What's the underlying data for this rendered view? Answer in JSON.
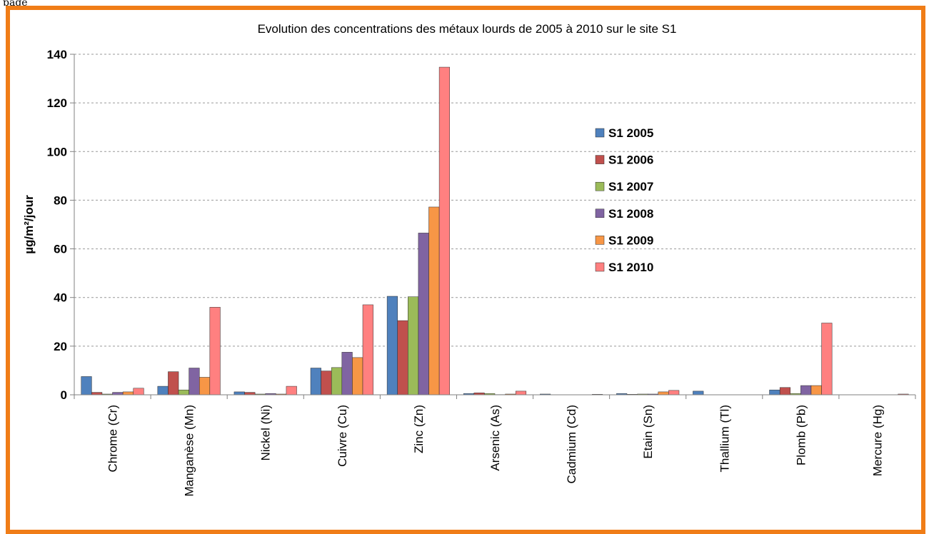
{
  "page_fragment": "page",
  "chart_data": {
    "type": "bar",
    "title": "Evolution des concentrations des métaux lourds de 2005 à 2010 sur le site S1",
    "xlabel": "",
    "ylabel": "µg/m²/jour",
    "ylim": [
      0,
      140
    ],
    "yticks": [
      0,
      20,
      40,
      60,
      80,
      100,
      120,
      140
    ],
    "grid": true,
    "legend_position": "upper-center-right",
    "categories": [
      "Chrome (Cr)",
      "Manganèse (Mn)",
      "Nickel (Ni)",
      "Cuivre (Cu)",
      "Zinc (Zn)",
      "Arsenic (As)",
      "Cadmium (Cd)",
      "Etain (Sn)",
      "Thallium (Tl)",
      "Plomb (Pb)",
      "Mercure (Hg)"
    ],
    "series": [
      {
        "name": "S1 2005",
        "color": "#4f81bd",
        "values": [
          7.5,
          3.5,
          1.2,
          11,
          40.5,
          0.5,
          0.3,
          0.5,
          1.5,
          2,
          0
        ]
      },
      {
        "name": "S1 2006",
        "color": "#c0504d",
        "values": [
          1,
          9.5,
          1,
          9.8,
          30.5,
          0.8,
          0,
          0.2,
          0,
          3,
          0
        ]
      },
      {
        "name": "S1 2007",
        "color": "#9bbb59",
        "values": [
          0.3,
          2,
          0.3,
          11.2,
          40.3,
          0.5,
          0,
          0.3,
          0,
          0.5,
          0
        ]
      },
      {
        "name": "S1 2008",
        "color": "#8064a2",
        "values": [
          1,
          11,
          0.5,
          17.5,
          66.5,
          0.1,
          0,
          0.3,
          0,
          3.8,
          0
        ]
      },
      {
        "name": "S1 2009",
        "color": "#f79646",
        "values": [
          1.2,
          7.2,
          0.3,
          15.3,
          77.2,
          0.3,
          0,
          1.2,
          0,
          3.8,
          0
        ]
      },
      {
        "name": "S1 2010",
        "color": "#ff8080",
        "values": [
          2.7,
          36,
          3.5,
          37,
          134.7,
          1.5,
          0.2,
          1.8,
          0,
          29.5,
          0.3
        ]
      }
    ]
  }
}
